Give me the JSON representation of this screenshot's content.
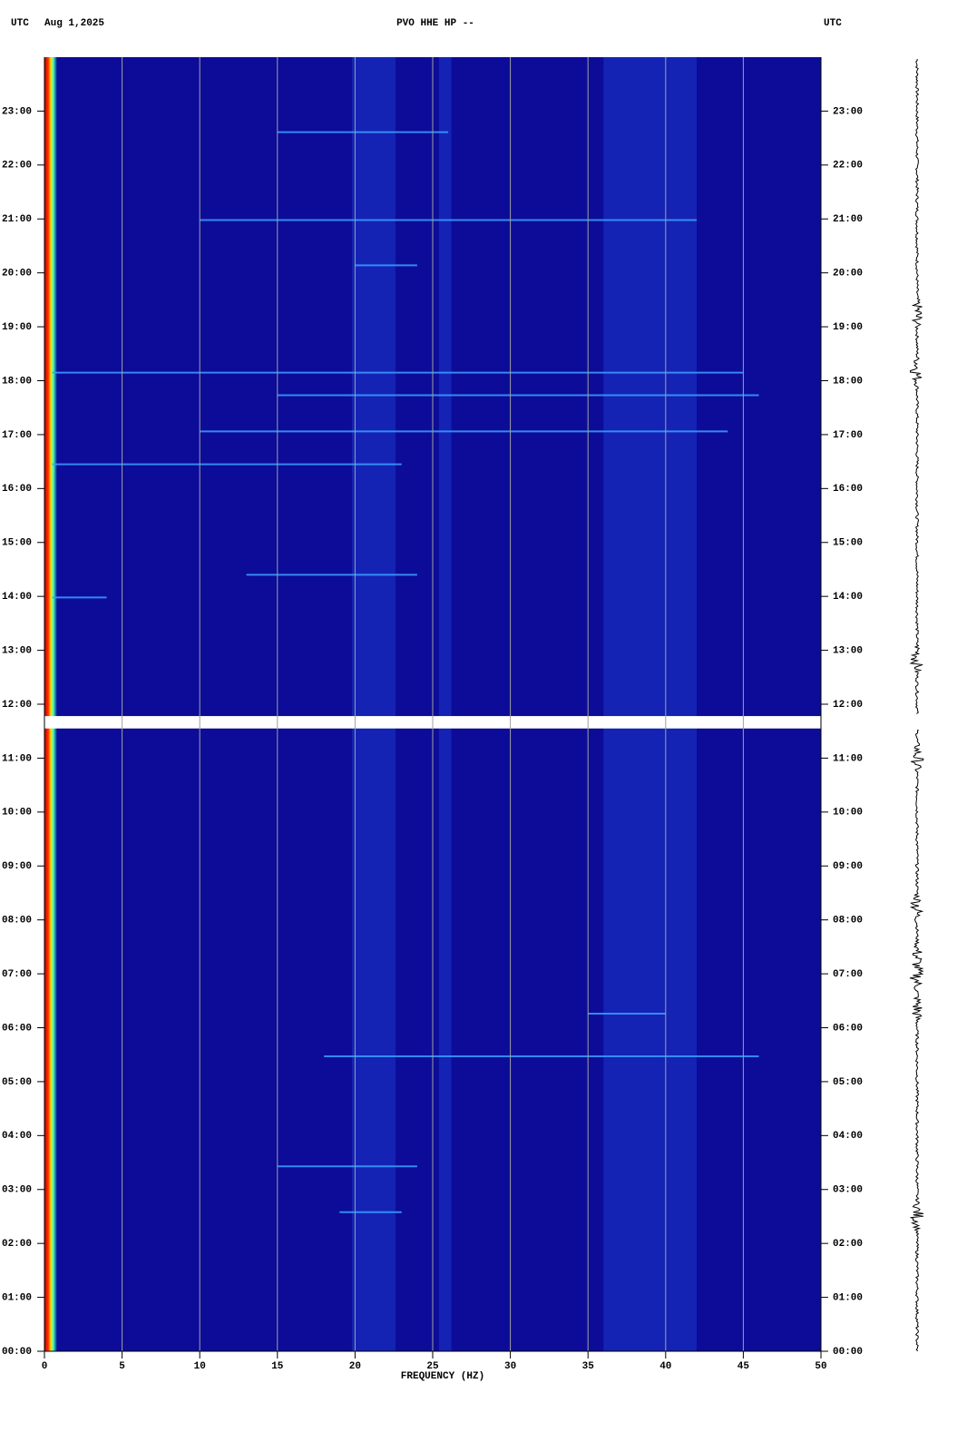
{
  "header": {
    "left_zone": "UTC",
    "date": "Aug 1,2025",
    "right_zone": "UTC"
  },
  "chart_data": {
    "type": "spectrogram",
    "title": "PVO HHE HP --",
    "x_label": "FREQUENCY (HZ)",
    "xlim": [
      0,
      50
    ],
    "xticks": [
      0,
      5,
      10,
      15,
      20,
      25,
      30,
      35,
      40,
      45,
      50
    ],
    "ylim": [
      0,
      24
    ],
    "yticks": [
      {
        "value": 0,
        "label": "00:00"
      },
      {
        "value": 1,
        "label": "01:00"
      },
      {
        "value": 2,
        "label": "02:00"
      },
      {
        "value": 3,
        "label": "03:00"
      },
      {
        "value": 4,
        "label": "04:00"
      },
      {
        "value": 5,
        "label": "05:00"
      },
      {
        "value": 6,
        "label": "06:00"
      },
      {
        "value": 7,
        "label": "07:00"
      },
      {
        "value": 8,
        "label": "08:00"
      },
      {
        "value": 9,
        "label": "09:00"
      },
      {
        "value": 10,
        "label": "10:00"
      },
      {
        "value": 11,
        "label": "11:00"
      },
      {
        "value": 12,
        "label": "12:00"
      },
      {
        "value": 13,
        "label": "13:00"
      },
      {
        "value": 14,
        "label": "14:00"
      },
      {
        "value": 15,
        "label": "15:00"
      },
      {
        "value": 16,
        "label": "16:00"
      },
      {
        "value": 17,
        "label": "17:00"
      },
      {
        "value": 18,
        "label": "18:00"
      },
      {
        "value": 19,
        "label": "19:00"
      },
      {
        "value": 20,
        "label": "20:00"
      },
      {
        "value": 21,
        "label": "21:00"
      },
      {
        "value": 22,
        "label": "22:00"
      },
      {
        "value": 23,
        "label": "23:00"
      }
    ],
    "grid": true,
    "background": "#0c0c98",
    "gap": [
      11.55,
      11.78
    ],
    "bands": {
      "color": "#2040d8",
      "from": [
        19.8,
        25.4,
        36
      ],
      "to": [
        22.6,
        26.2,
        42
      ]
    },
    "streaks": {
      "color": "#3aa0ff",
      "time": [
        18.15,
        16.45,
        5.47,
        17.06,
        22.61,
        17.73,
        20.98,
        20.14,
        3.43,
        2.58,
        13.98,
        6.26,
        14.4
      ],
      "from": [
        0.5,
        0.5,
        18,
        10,
        15,
        15,
        10,
        20,
        15,
        19,
        0.5,
        35,
        13
      ],
      "to": [
        45,
        23,
        46,
        44,
        26,
        46,
        42,
        24,
        24,
        23,
        4,
        40,
        24
      ]
    }
  }
}
